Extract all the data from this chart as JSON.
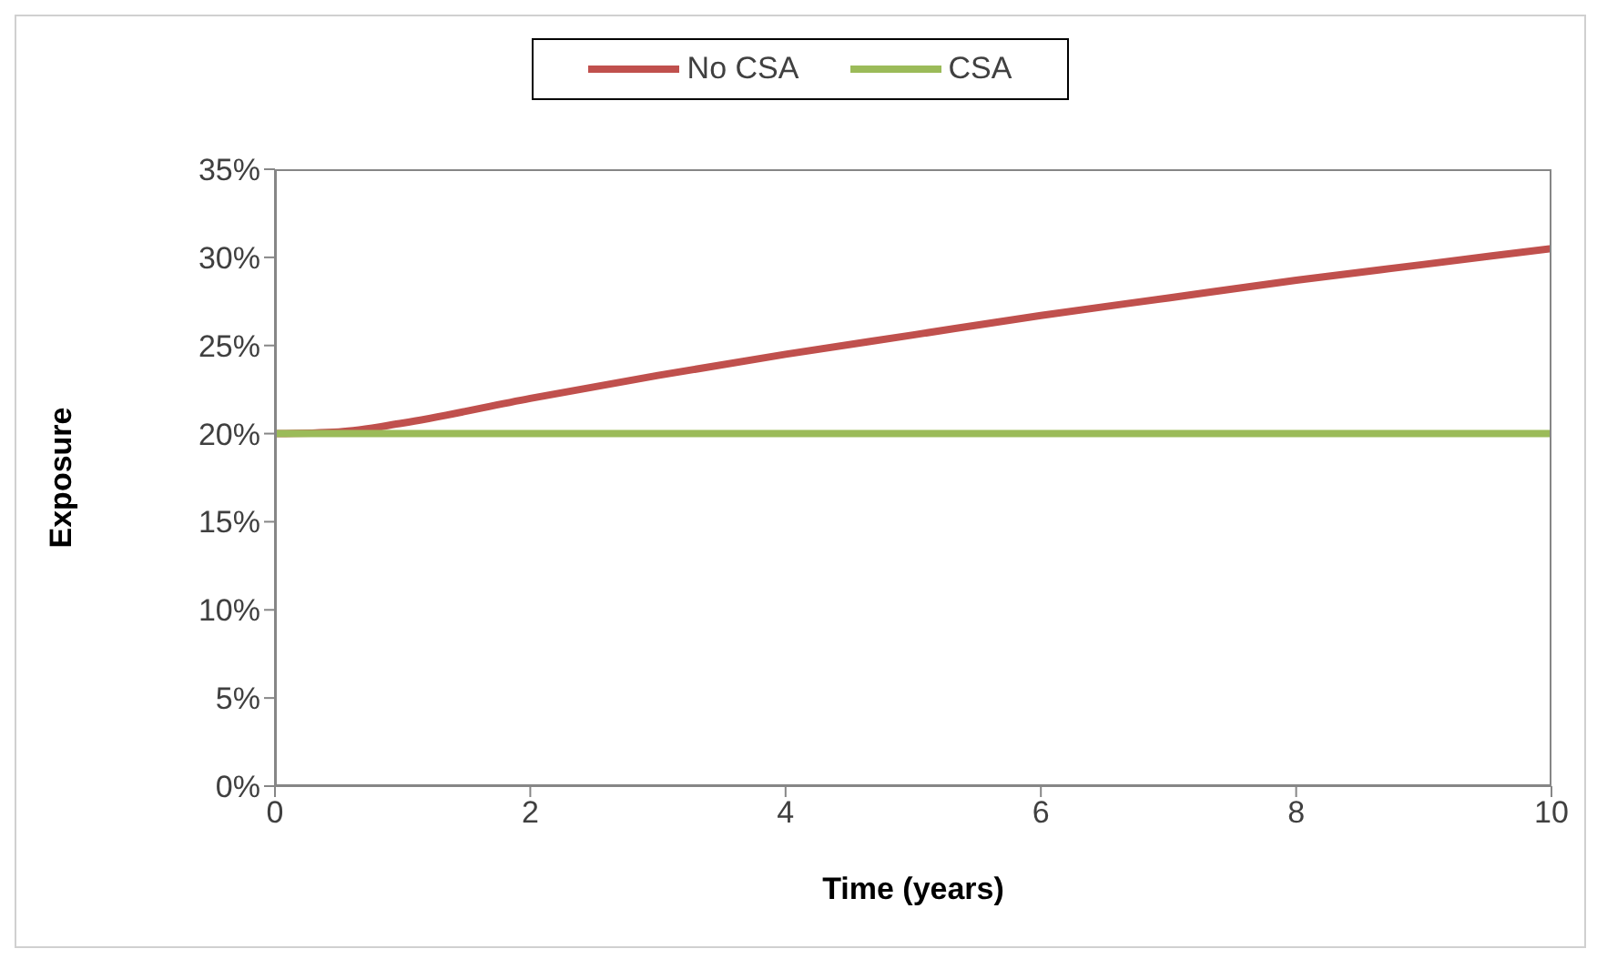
{
  "chart_data": {
    "type": "line",
    "xlabel": "Time (years)",
    "ylabel": "Exposure",
    "x": [
      0,
      0.5,
      1,
      2,
      3,
      4,
      5,
      6,
      7,
      8,
      9,
      10
    ],
    "series": [
      {
        "name": "No CSA",
        "color": "#c0504d",
        "values": [
          20,
          20.1,
          20.6,
          22,
          23.3,
          24.5,
          25.6,
          26.7,
          27.7,
          28.7,
          29.6,
          30.5
        ]
      },
      {
        "name": "CSA",
        "color": "#9bbb59",
        "values": [
          20,
          20,
          20,
          20,
          20,
          20,
          20,
          20,
          20,
          20,
          20,
          20
        ]
      }
    ],
    "xlim": [
      0,
      10
    ],
    "xticks": [
      0,
      2,
      4,
      6,
      8,
      10
    ],
    "ylim": [
      0,
      35
    ],
    "yticks": [
      {
        "value": 0,
        "label": "0%"
      },
      {
        "value": 5,
        "label": "5%"
      },
      {
        "value": 10,
        "label": "10%"
      },
      {
        "value": 15,
        "label": "15%"
      },
      {
        "value": 20,
        "label": "20%"
      },
      {
        "value": 25,
        "label": "25%"
      },
      {
        "value": 30,
        "label": "30%"
      },
      {
        "value": 35,
        "label": "35%"
      }
    ],
    "grid": false,
    "legend": "top",
    "marker": "none",
    "line_style": "solid"
  }
}
